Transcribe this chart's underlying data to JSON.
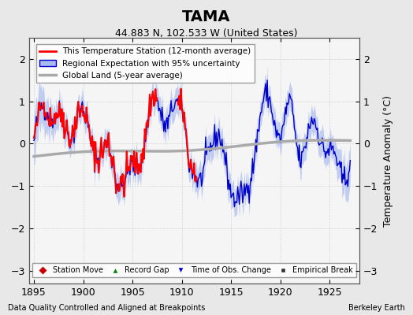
{
  "title": "TAMA",
  "subtitle": "44.883 N, 102.533 W (United States)",
  "ylabel": "Temperature Anomaly (°C)",
  "xlabel_bottom": "Data Quality Controlled and Aligned at Breakpoints",
  "xlabel_right": "Berkeley Earth",
  "xlim": [
    1894.5,
    1928.0
  ],
  "ylim": [
    -3.3,
    2.5
  ],
  "yticks": [
    -3,
    -2,
    -1,
    0,
    1,
    2
  ],
  "xticks": [
    1895,
    1900,
    1905,
    1910,
    1915,
    1920,
    1925
  ],
  "bg_color": "#e8e8e8",
  "plot_bg_color": "#f5f5f5",
  "legend1_entries": [
    {
      "label": "This Temperature Station (12-month average)",
      "color": "#ff0000",
      "lw": 2
    },
    {
      "label": "Regional Expectation with 95% uncertainty",
      "color": "#0000cc",
      "fill": "#aabbee"
    },
    {
      "label": "Global Land (5-year average)",
      "color": "#aaaaaa",
      "lw": 3
    }
  ],
  "legend2_entries": [
    {
      "label": "Station Move",
      "marker": "D",
      "color": "#cc0000"
    },
    {
      "label": "Record Gap",
      "marker": "^",
      "color": "#008800"
    },
    {
      "label": "Time of Obs. Change",
      "marker": "v",
      "color": "#0000cc"
    },
    {
      "label": "Empirical Break",
      "marker": "s",
      "color": "#333333"
    }
  ]
}
